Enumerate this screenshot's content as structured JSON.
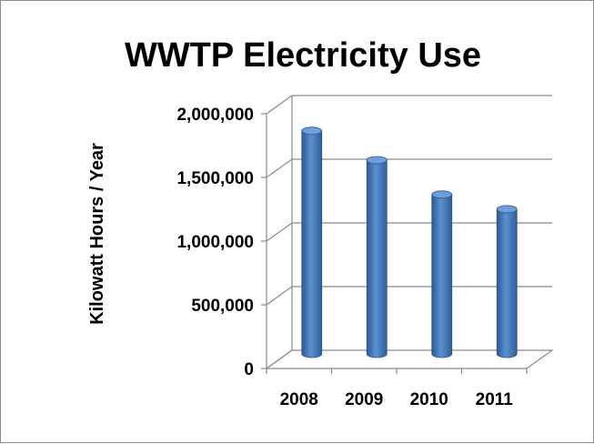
{
  "chart_data": {
    "type": "bar",
    "title": "WWTP Electricity Use",
    "xlabel": "",
    "ylabel": "Kilowatt Hours / Year",
    "categories": [
      "2008",
      "2009",
      "2010",
      "2011"
    ],
    "values": [
      1780000,
      1550000,
      1280000,
      1165000
    ],
    "ylim": [
      0,
      2000000
    ],
    "yticks": [
      "0",
      "500,000",
      "1,000,000",
      "1,500,000",
      "2,000,000"
    ],
    "grid": true,
    "legend": "none",
    "bar_color": "#4f81bd"
  }
}
